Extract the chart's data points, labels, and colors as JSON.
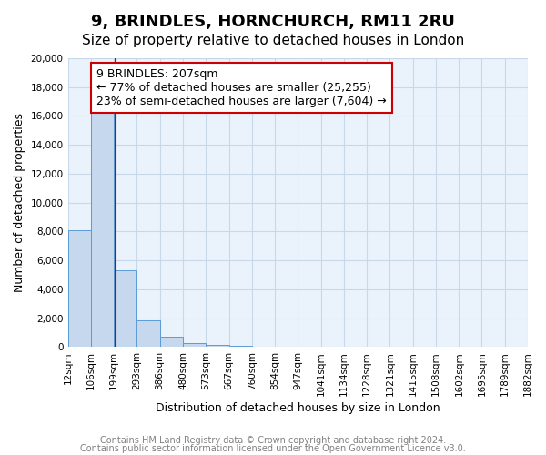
{
  "title": "9, BRINDLES, HORNCHURCH, RM11 2RU",
  "subtitle": "Size of property relative to detached houses in London",
  "xlabel": "Distribution of detached houses by size in London",
  "ylabel": "Number of detached properties",
  "bar_values": [
    8100,
    16500,
    5300,
    1850,
    750,
    280,
    180,
    100,
    0,
    0,
    0,
    0,
    0,
    0,
    0,
    0,
    0,
    0,
    0,
    0
  ],
  "bin_labels": [
    "12sqm",
    "106sqm",
    "199sqm",
    "293sqm",
    "386sqm",
    "480sqm",
    "573sqm",
    "667sqm",
    "760sqm",
    "854sqm",
    "947sqm",
    "1041sqm",
    "1134sqm",
    "1228sqm",
    "1321sqm",
    "1415sqm",
    "1508sqm",
    "1602sqm",
    "1695sqm",
    "1789sqm",
    "1882sqm"
  ],
  "bin_edges": [
    12,
    106,
    199,
    293,
    386,
    480,
    573,
    667,
    760,
    854,
    947,
    1041,
    1134,
    1228,
    1321,
    1415,
    1508,
    1602,
    1695,
    1789,
    1882
  ],
  "bar_color": "#c5d8ed",
  "bar_edge_color": "#5b9bd5",
  "red_line_x": 207,
  "annotation_text": "9 BRINDLES: 207sqm\n← 77% of detached houses are smaller (25,255)\n23% of semi-detached houses are larger (7,604) →",
  "annotation_box_color": "#ffffff",
  "annotation_box_edge_color": "#cc0000",
  "ylim": [
    0,
    20000
  ],
  "yticks": [
    0,
    2000,
    4000,
    6000,
    8000,
    10000,
    12000,
    14000,
    16000,
    18000,
    20000
  ],
  "grid_color": "#c8d8e8",
  "background_color": "#eaf2fb",
  "footer_line1": "Contains HM Land Registry data © Crown copyright and database right 2024.",
  "footer_line2": "Contains public sector information licensed under the Open Government Licence v3.0.",
  "title_fontsize": 13,
  "subtitle_fontsize": 11,
  "axis_label_fontsize": 9,
  "tick_fontsize": 7.5,
  "annotation_fontsize": 9,
  "footer_fontsize": 7
}
